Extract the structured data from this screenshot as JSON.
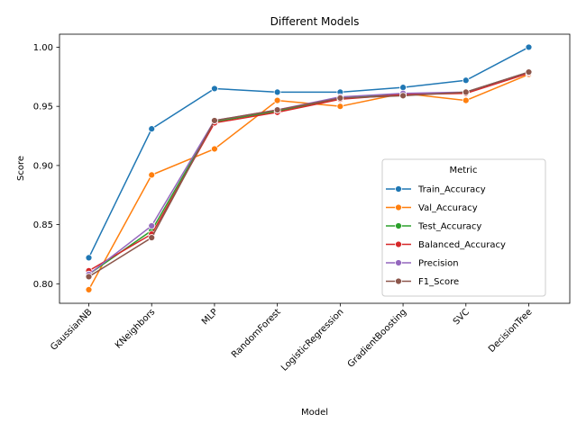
{
  "chart_data": {
    "type": "line",
    "title": "Different Models",
    "xlabel": "Model",
    "ylabel": "Score",
    "categories": [
      "GaussianNB",
      "KNeighbors",
      "MLP",
      "RandomForest",
      "LogisticRegression",
      "GradientBoosting",
      "SVC",
      "DecisionTree"
    ],
    "ylim": [
      0.7835,
      1.011
    ],
    "yticks": [
      "0.80",
      "0.85",
      "0.90",
      "0.95",
      "1.00"
    ],
    "ytick_values": [
      0.8,
      0.85,
      0.9,
      0.95,
      1.0
    ],
    "grid": false,
    "legend": {
      "title": "Metric",
      "position": "center-right"
    },
    "series": [
      {
        "name": "Train_Accuracy",
        "color": "#1f77b4",
        "values": [
          0.822,
          0.931,
          0.965,
          0.962,
          0.962,
          0.966,
          0.972,
          1.0
        ]
      },
      {
        "name": "Val_Accuracy",
        "color": "#ff7f0e",
        "values": [
          0.795,
          0.892,
          0.914,
          0.955,
          0.95,
          0.961,
          0.955,
          0.977
        ]
      },
      {
        "name": "Test_Accuracy",
        "color": "#2ca02c",
        "values": [
          0.808,
          0.845,
          0.937,
          0.946,
          0.957,
          0.96,
          0.962,
          0.979
        ]
      },
      {
        "name": "Balanced_Accuracy",
        "color": "#d62728",
        "values": [
          0.811,
          0.842,
          0.936,
          0.945,
          0.956,
          0.96,
          0.961,
          0.978
        ]
      },
      {
        "name": "Precision",
        "color": "#9467bd",
        "values": [
          0.808,
          0.849,
          0.938,
          0.947,
          0.958,
          0.961,
          0.962,
          0.979
        ]
      },
      {
        "name": "F1_Score",
        "color": "#8c564b",
        "values": [
          0.806,
          0.839,
          0.938,
          0.947,
          0.957,
          0.959,
          0.962,
          0.979
        ]
      }
    ]
  }
}
